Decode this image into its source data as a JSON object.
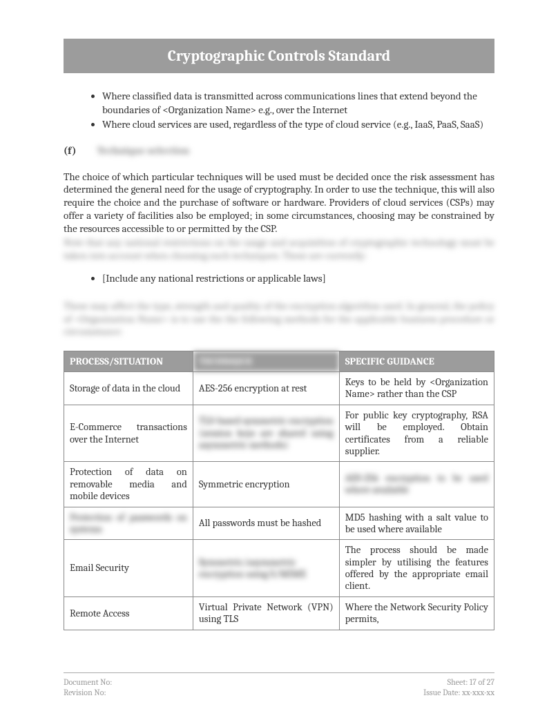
{
  "title": "Cryptographic Controls Standard",
  "bullets_top": [
    "Where classified data is transmitted across communications lines that extend beyond the boundaries of <Organization Name> e.g., over the Internet",
    "Where cloud services are used, regardless of the type of cloud service (e.g., IaaS, PaaS, SaaS)"
  ],
  "section_f": {
    "label": "(f)",
    "heading_blur": "Technique selection"
  },
  "para1": "The choice of which particular techniques will be used must be decided once the risk assessment has determined the general need for the usage of cryptography. In order to use the technique, this will also require the choice and the purchase of software or hardware. Providers of cloud services (CSPs) may offer a variety of facilities also be employed; in some circumstances, choosing may be constrained by the resources accessible to or permitted by the CSP.",
  "para1_blur": "Note that any national restrictions on the usage and acquisition of cryptographic technology must be taken into account when choosing such techniques. These are currently:",
  "bullet_mid": "[Include any national restrictions or applicable laws]",
  "para2_blur": "These may affect the type, strength and quality of the encryption algorithm used. In general, the policy of <Organization Name> is to use the the following methods for the applicable business procedure or circumstance:",
  "table": {
    "headers": {
      "c1": "PROCESS/SITUATION",
      "c2_blur": "TECHNIQUE",
      "c3": "SPECIFIC GUIDANCE"
    },
    "rows": [
      {
        "c1": "Storage of data in the cloud",
        "c2": "AES-256 encryption at rest",
        "c3": "Keys to be held by <Organization Name> rather than the CSP"
      },
      {
        "c1": "E-Commerce transactions over the Internet",
        "c2_blur": "TLS-based symmetric encryption (session keys are shared using asymmetric methods)",
        "c3": "For public key cryptography, RSA will be employed. Obtain certificates from a reliable supplier."
      },
      {
        "c1": "Protection of data on removable media and mobile devices",
        "c2": "Symmetric encryption",
        "c3_blur": "AES-256 encryption to be used where available"
      },
      {
        "c1_blur": "Protection of passwords on systems",
        "c2": "All passwords must be hashed",
        "c3": "MD5 hashing with a salt value to be used where available"
      },
      {
        "c1": "Email Security",
        "c2_blur": "Symmetric/asymmetric encryption using S/MIME",
        "c3": "The process should be made simpler by utilising the features offered by the appropriate email client."
      },
      {
        "c1": "Remote Access",
        "c2": "Virtual Private Network (VPN) using TLS",
        "c3": "Where the Network Security Policy permits,"
      }
    ]
  },
  "footer": {
    "doc_no": "Document No:",
    "rev_no": "Revision No:",
    "sheet": "Sheet: 17 of 27",
    "issue": "Issue Date: xx-xxx-xx"
  }
}
